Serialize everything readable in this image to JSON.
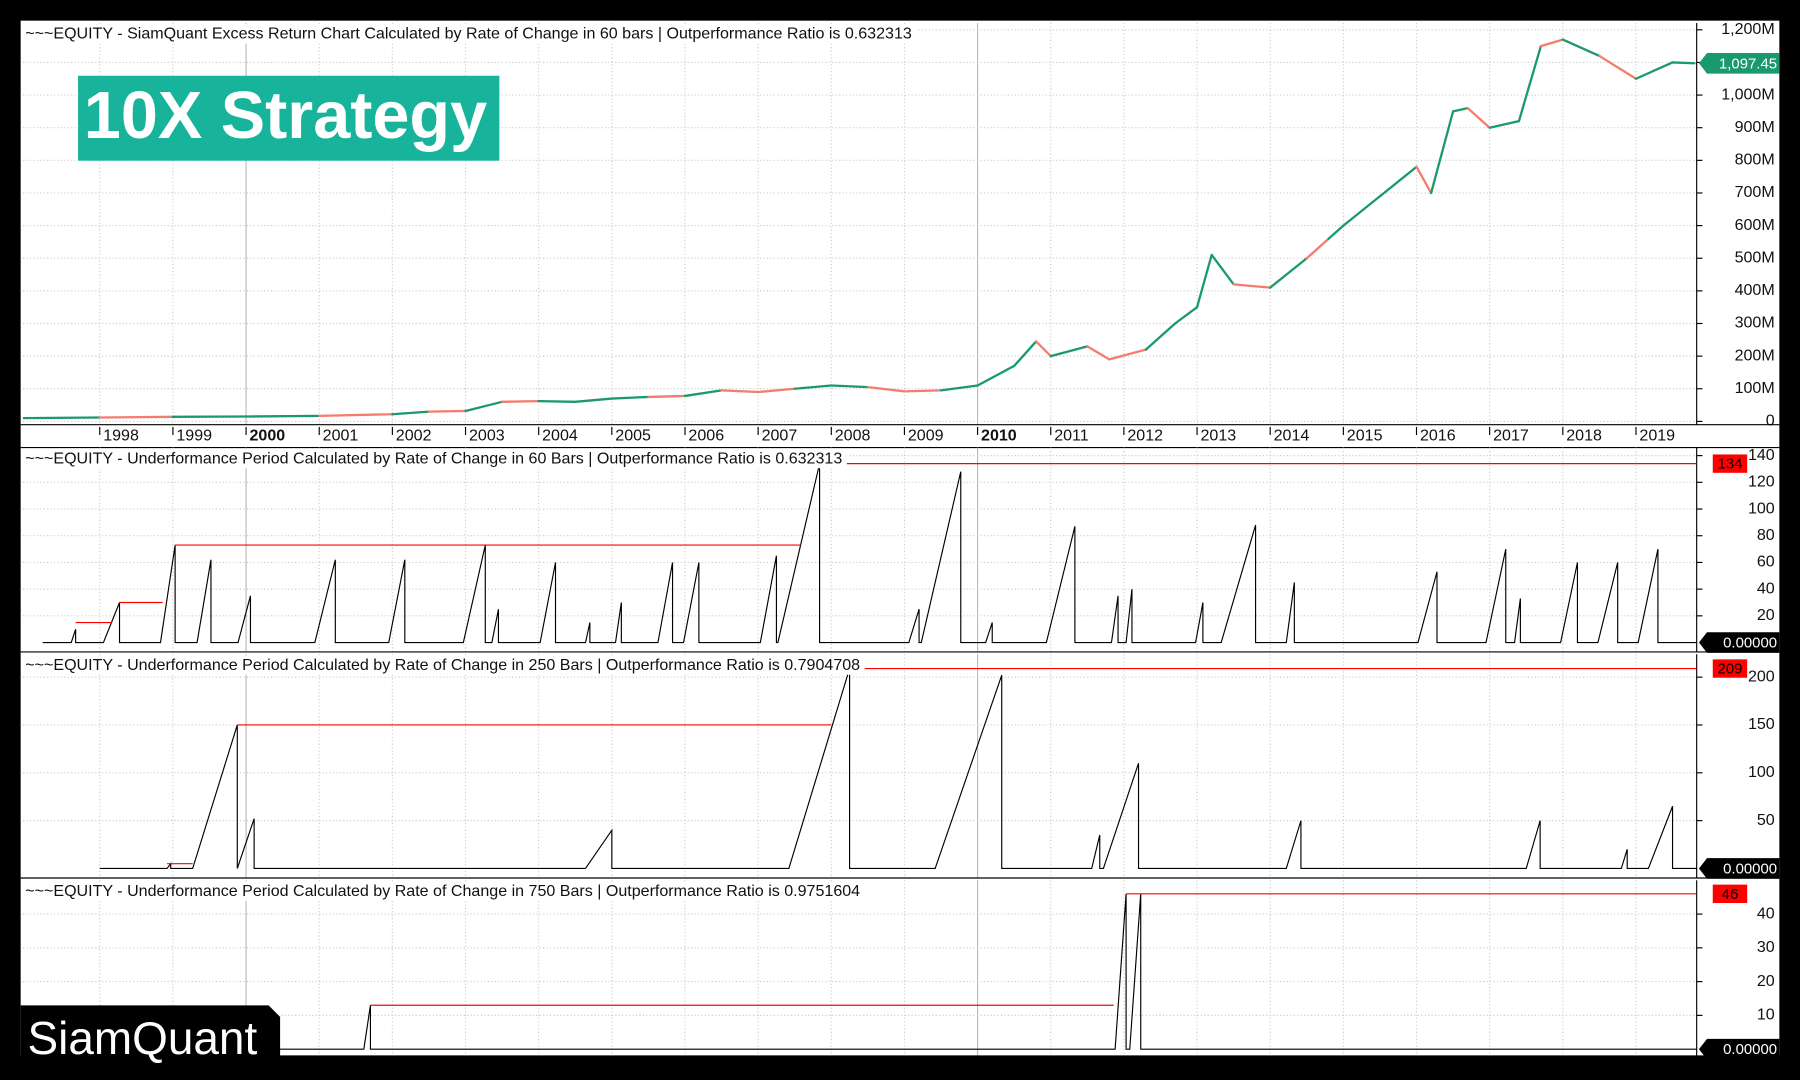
{
  "badge": "10X Strategy",
  "logo": "SiamQuant",
  "chart_data": [
    {
      "type": "line",
      "title": "~~~EQUITY - SiamQuant Excess Return Chart Calculated by Rate of Change in 60 bars | Outperformance Ratio is 0.632313",
      "x": [
        1996.95,
        1998.0,
        1999.0,
        2000.0,
        2001.0,
        2002.0,
        2002.5,
        2003.0,
        2003.5,
        2004.0,
        2004.5,
        2005.0,
        2005.5,
        2006.0,
        2006.5,
        2007.0,
        2007.5,
        2008.0,
        2008.5,
        2009.0,
        2009.5,
        2010.0,
        2010.5,
        2010.8,
        2011.0,
        2011.5,
        2011.8,
        2012.3,
        2012.7,
        2013.0,
        2013.2,
        2013.5,
        2014.0,
        2014.5,
        2014.8,
        2015.0,
        2015.5,
        2016.0,
        2016.2,
        2016.5,
        2016.7,
        2017.0,
        2017.4,
        2017.7,
        2018.0,
        2018.5,
        2019.0,
        2019.5,
        2019.8
      ],
      "values": [
        10,
        12,
        14,
        15,
        17,
        22,
        30,
        32,
        60,
        62,
        60,
        70,
        75,
        78,
        95,
        90,
        100,
        110,
        105,
        92,
        95,
        110,
        170,
        245,
        200,
        230,
        190,
        220,
        300,
        350,
        510,
        420,
        410,
        500,
        560,
        600,
        690,
        780,
        700,
        950,
        960,
        900,
        920,
        1150,
        1170,
        1120,
        1050,
        1100,
        1097.45
      ],
      "colors": [
        "#1a9a6c",
        "#f47c6e",
        "#1a9a6c",
        "#1a9a6c",
        "#f47c6e",
        "#1a9a6c",
        "#f47c6e",
        "#1a9a6c",
        "#f47c6e",
        "#1a9a6c",
        "#1a9a6c",
        "#1a9a6c",
        "#f47c6e",
        "#1a9a6c",
        "#f47c6e",
        "#f47c6e",
        "#1a9a6c",
        "#1a9a6c",
        "#f47c6e",
        "#f47c6e",
        "#1a9a6c",
        "#1a9a6c",
        "#1a9a6c",
        "#f47c6e",
        "#1a9a6c",
        "#f47c6e",
        "#f47c6e",
        "#1a9a6c",
        "#1a9a6c",
        "#1a9a6c",
        "#1a9a6c",
        "#f47c6e",
        "#1a9a6c",
        "#f47c6e",
        "#1a9a6c",
        "#1a9a6c",
        "#1a9a6c",
        "#f47c6e",
        "#1a9a6c",
        "#1a9a6c",
        "#f47c6e",
        "#1a9a6c",
        "#1a9a6c",
        "#f47c6e",
        "#1a9a6c",
        "#f47c6e",
        "#1a9a6c",
        "#1a9a6c",
        "#1a9a6c"
      ],
      "last_label": "1,097.45",
      "xlim": [
        1996.95,
        2019.83
      ],
      "xticks": [
        1998,
        1999,
        2000,
        2001,
        2002,
        2003,
        2004,
        2005,
        2006,
        2007,
        2008,
        2009,
        2010,
        2011,
        2012,
        2013,
        2014,
        2015,
        2016,
        2017,
        2018,
        2019
      ],
      "major_tick_step": 10,
      "ylim": [
        -10,
        1221
      ],
      "yticks": [
        0,
        {
          "value": 100,
          "label": "100M"
        },
        {
          "value": 200,
          "label": "200M"
        },
        {
          "value": 300,
          "label": "300M"
        },
        {
          "value": 400,
          "label": "400M"
        },
        {
          "value": 500,
          "label": "500M"
        },
        {
          "value": 600,
          "label": "600M"
        },
        {
          "value": 700,
          "label": "700M"
        },
        {
          "value": 800,
          "label": "800M"
        },
        {
          "value": 900,
          "label": "900M"
        },
        {
          "value": 1000,
          "label": "1,000M"
        },
        {
          "value": 1100,
          "label": "1,100M"
        },
        {
          "value": 1200,
          "label": "1,200M"
        }
      ],
      "grid": true
    },
    {
      "type": "line",
      "title": "~~~EQUITY - Underformance Period Calculated by Rate of Change in 60 Bars | Outperformance Ratio is 0.632313",
      "series": [
        {
          "color": "#000000",
          "last_label": "0.00000",
          "x": [
            1997.22,
            1997.61,
            1997.67,
            1997.67,
            1998.05,
            1998.27,
            1998.27,
            1998.83,
            1999.03,
            1999.03,
            1999.33,
            1999.52,
            1999.52,
            1999.89,
            2000.06,
            2000.06,
            2000.94,
            2001.22,
            2001.22,
            2001.95,
            2002.17,
            2002.17,
            2002.97,
            2003.27,
            2003.27,
            2003.36,
            2003.45,
            2003.45,
            2004.02,
            2004.23,
            2004.23,
            2004.64,
            2004.7,
            2004.7,
            2005.05,
            2005.13,
            2005.13,
            2005.63,
            2005.83,
            2005.83,
            2005.98,
            2006.19,
            2006.19,
            2007.03,
            2007.25,
            2007.25,
            2007.27,
            2007.84,
            2007.84,
            2009.06,
            2009.2,
            2009.2,
            2009.23,
            2009.77,
            2009.77,
            2010.11,
            2010.2,
            2010.2,
            2010.94,
            2011.33,
            2011.33,
            2011.83,
            2011.92,
            2011.92,
            2012.03,
            2012.11,
            2012.11,
            2012.98,
            2013.08,
            2013.08,
            2013.33,
            2013.8,
            2013.8,
            2014.22,
            2014.33,
            2014.33,
            2016.02,
            2016.28,
            2016.28,
            2016.95,
            2017.22,
            2017.22,
            2017.34,
            2017.42,
            2017.42,
            2017.97,
            2018.2,
            2018.2,
            2018.48,
            2018.75,
            2018.75,
            2019.03,
            2019.3,
            2019.3,
            2019.83
          ],
          "values": [
            0,
            0,
            10,
            0,
            0,
            30,
            0,
            0,
            73,
            0,
            0,
            62,
            0,
            0,
            35,
            0,
            0,
            62,
            0,
            0,
            62,
            0,
            0,
            73,
            0,
            0,
            25,
            0,
            0,
            60,
            0,
            0,
            15,
            0,
            0,
            30,
            0,
            0,
            60,
            0,
            0,
            60,
            0,
            0,
            65,
            0,
            0,
            134,
            0,
            0,
            25,
            0,
            0,
            128,
            0,
            0,
            15,
            0,
            0,
            87,
            0,
            0,
            35,
            0,
            0,
            40,
            0,
            0,
            30,
            0,
            0,
            88,
            0,
            0,
            45,
            0,
            0,
            53,
            0,
            0,
            70,
            0,
            0,
            33,
            0,
            0,
            60,
            0,
            0,
            60,
            0,
            0,
            70,
            0,
            0
          ]
        },
        {
          "color": "#ff0000",
          "last_label": "134",
          "x": [
            1997.67,
            1998.17,
            1998.17,
            1998.27,
            1998.86,
            1998.86,
            1999.03,
            2007.58,
            2007.58,
            2007.84,
            2019.83
          ],
          "values": [
            15,
            15,
            null,
            30,
            30,
            null,
            73,
            73,
            null,
            134,
            134
          ]
        }
      ],
      "ylim": [
        -7,
        146
      ],
      "yticks": [
        20,
        40,
        60,
        80,
        100,
        120,
        140
      ],
      "grid": true
    },
    {
      "type": "line",
      "title": "~~~EQUITY - Underformance Period Calculated by Rate of Change in 250 Bars | Outperformance Ratio is 0.7904708",
      "series": [
        {
          "color": "#000000",
          "last_label": "0.00000",
          "x": [
            1998.0,
            1998.92,
            1998.97,
            1998.97,
            1999.27,
            1999.88,
            1999.88,
            2000.11,
            2000.11,
            2004.64,
            2005.0,
            2005.0,
            2007.42,
            2008.25,
            2008.25,
            2009.42,
            2010.33,
            2010.33,
            2011.56,
            2011.67,
            2011.67,
            2011.72,
            2012.2,
            2012.2,
            2014.22,
            2014.42,
            2014.42,
            2017.5,
            2017.69,
            2017.69,
            2018.8,
            2018.88,
            2018.88,
            2019.17,
            2019.5,
            2019.5,
            2019.83
          ],
          "values": [
            0,
            0,
            5,
            0,
            0,
            150,
            0,
            52,
            0,
            0,
            40,
            0,
            0,
            209,
            0,
            0,
            202,
            0,
            0,
            35,
            0,
            0,
            110,
            0,
            0,
            50,
            0,
            0,
            50,
            0,
            0,
            20,
            0,
            0,
            65,
            0,
            0
          ]
        },
        {
          "color": "#ff0000",
          "last_label": "209",
          "x": [
            1998.92,
            1999.27,
            1999.27,
            1999.88,
            2008.0,
            2008.0,
            2008.25,
            2019.83
          ],
          "values": [
            5,
            5,
            null,
            150,
            150,
            null,
            209,
            209
          ]
        }
      ],
      "ylim": [
        -10,
        224
      ],
      "yticks": [
        50,
        100,
        150,
        200
      ],
      "grid": true
    },
    {
      "type": "line",
      "title": "~~~EQUITY - Underformance Period Calculated by Rate of Change in 750 Bars | Outperformance Ratio is 0.9751604",
      "series": [
        {
          "color": "#000000",
          "last_label": "0.00000",
          "x": [
            2000.0,
            2001.61,
            2001.7,
            2001.7,
            2011.88,
            2012.03,
            2012.03,
            2012.08,
            2012.23,
            2012.23,
            2019.83
          ],
          "values": [
            0,
            0,
            13,
            0,
            0,
            46,
            0,
            0,
            46,
            0,
            0
          ]
        },
        {
          "color": "#ff0000",
          "last_label": "46",
          "x": [
            2001.7,
            2011.86,
            2011.86,
            2012.03,
            2019.83
          ],
          "values": [
            13,
            13,
            null,
            46,
            46
          ]
        }
      ],
      "ylim": [
        -2,
        50
      ],
      "yticks": [
        10,
        20,
        30,
        40
      ],
      "grid": true
    }
  ]
}
